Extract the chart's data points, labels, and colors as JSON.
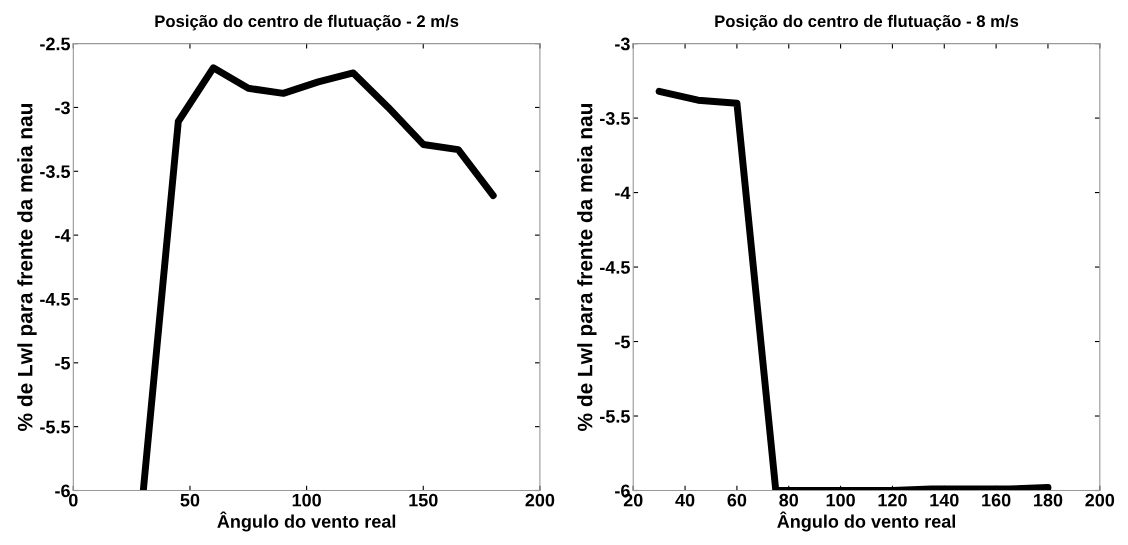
{
  "chart_data": [
    {
      "type": "line",
      "title": "Posição do centro de flutuação - 2 m/s",
      "xlabel": "Ângulo do vento real",
      "ylabel": "% de Lwl para frente da meia nau",
      "x": [
        30,
        45,
        60,
        75,
        90,
        105,
        120,
        135,
        150,
        165,
        180
      ],
      "series": [
        {
          "color": "#000000",
          "values": [
            -6,
            -3.11,
            -2.69,
            -2.85,
            -2.89,
            -2.8,
            -2.73,
            -3.0,
            -3.29,
            -3.33,
            -3.69
          ]
        }
      ],
      "xlim": [
        0,
        200
      ],
      "xticks": [
        0,
        50,
        100,
        150,
        200
      ],
      "ylim": [
        -6,
        -2.5
      ],
      "yticks": [
        -6,
        -5.5,
        -5,
        -4.5,
        -4,
        -3.5,
        -3,
        -2.5
      ],
      "grid": false,
      "marker": "none",
      "line_style": "solid"
    },
    {
      "type": "line",
      "title": "Posição do centro de flutuação - 8 m/s",
      "xlabel": "Ângulo do vento real",
      "ylabel": "% de Lwl para frente da meia nau",
      "x": [
        30,
        45,
        60,
        75,
        90,
        105,
        120,
        135,
        150,
        165,
        180
      ],
      "series": [
        {
          "color": "#000000",
          "values": [
            -3.32,
            -3.38,
            -3.4,
            -6,
            -6,
            -6,
            -6,
            -5.99,
            -5.99,
            -5.99,
            -5.98
          ]
        }
      ],
      "xlim": [
        20,
        200
      ],
      "xticks": [
        20,
        40,
        60,
        80,
        100,
        120,
        140,
        160,
        180,
        200
      ],
      "ylim": [
        -6,
        -3
      ],
      "yticks": [
        -6,
        -5.5,
        -5,
        -4.5,
        -4,
        -3.5,
        -3
      ],
      "grid": false,
      "marker": "none",
      "line_style": "solid"
    }
  ]
}
